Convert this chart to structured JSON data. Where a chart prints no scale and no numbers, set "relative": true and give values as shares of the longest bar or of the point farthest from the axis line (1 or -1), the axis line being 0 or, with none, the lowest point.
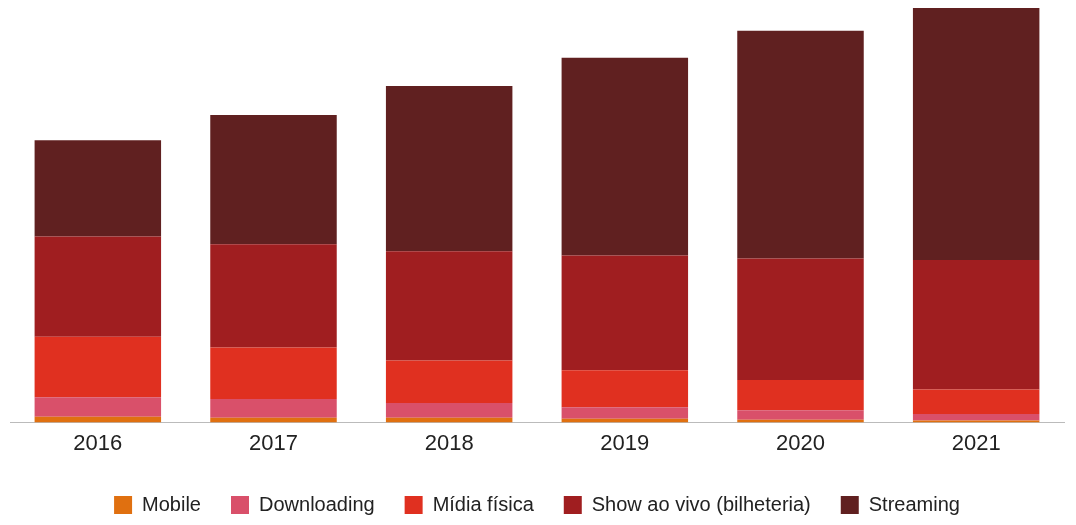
{
  "chart_data": {
    "type": "bar",
    "stacked": true,
    "relative": true,
    "categories": [
      "2016",
      "2017",
      "2018",
      "2019",
      "2020",
      "2021"
    ],
    "series": [
      {
        "name": "Mobile",
        "color": "#e07010",
        "values": [
          0.014,
          0.012,
          0.012,
          0.009,
          0.007,
          0.005
        ]
      },
      {
        "name": "Downloading",
        "color": "#d9506a",
        "values": [
          0.047,
          0.045,
          0.035,
          0.028,
          0.023,
          0.016
        ]
      },
      {
        "name": "Mídia física",
        "color": "#e03020",
        "values": [
          0.146,
          0.124,
          0.103,
          0.089,
          0.073,
          0.059
        ]
      },
      {
        "name": "Show ao vivo (bilheteria)",
        "color": "#a01e20",
        "values": [
          0.242,
          0.249,
          0.263,
          0.277,
          0.293,
          0.312
        ]
      },
      {
        "name": "Streaming",
        "color": "#602020",
        "values": [
          0.232,
          0.312,
          0.399,
          0.477,
          0.549,
          0.608
        ]
      }
    ],
    "grid": false,
    "legend": "bottom"
  }
}
